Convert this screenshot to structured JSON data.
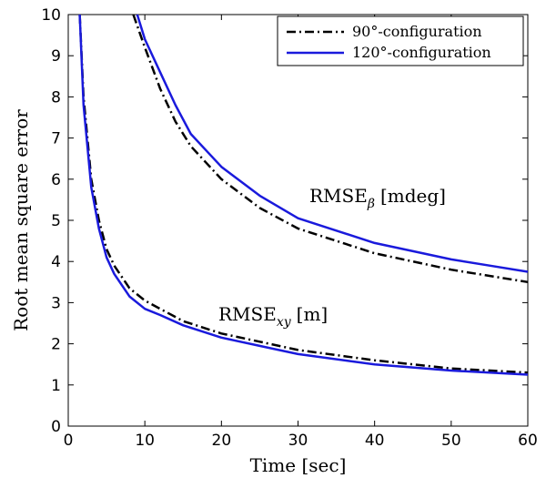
{
  "chart_data": {
    "type": "line",
    "title": "",
    "xlabel": "Time [sec]",
    "ylabel": "Root mean square error",
    "xlim": [
      0,
      60
    ],
    "ylim": [
      0,
      10
    ],
    "xticks": [
      "0",
      "10",
      "20",
      "30",
      "40",
      "50",
      "60"
    ],
    "yticks": [
      "0",
      "1",
      "2",
      "3",
      "4",
      "5",
      "6",
      "7",
      "8",
      "9",
      "10"
    ],
    "grid": false,
    "legend_position": "top-right",
    "legend": [
      "90°-configuration",
      "120°-configuration"
    ],
    "annotations": {
      "beta": {
        "base": "RMSE",
        "sub": "β",
        "unit": "[mdeg]"
      },
      "xy": {
        "base": "RMSE",
        "sub": "xy",
        "unit": "[m]"
      }
    },
    "series": [
      {
        "name": "90°-configuration",
        "group": "RMSE_beta",
        "style": "dashdot",
        "color": "#000000",
        "x": [
          8.5,
          10,
          12,
          14,
          16,
          18,
          20,
          25,
          30,
          35,
          40,
          45,
          50,
          55,
          60
        ],
        "y": [
          10.0,
          9.2,
          8.2,
          7.4,
          6.8,
          6.4,
          6.0,
          5.3,
          4.8,
          4.5,
          4.2,
          4.0,
          3.8,
          3.65,
          3.5
        ]
      },
      {
        "name": "120°-configuration",
        "group": "RMSE_beta",
        "style": "solid",
        "color": "#1a1adc",
        "x": [
          9.0,
          10,
          12,
          14,
          16,
          18,
          20,
          25,
          30,
          35,
          40,
          45,
          50,
          55,
          60
        ],
        "y": [
          10.0,
          9.4,
          8.6,
          7.8,
          7.1,
          6.7,
          6.3,
          5.6,
          5.05,
          4.75,
          4.45,
          4.25,
          4.05,
          3.9,
          3.75
        ]
      },
      {
        "name": "90°-configuration",
        "group": "RMSE_xy",
        "style": "dashdot",
        "color": "#000000",
        "x": [
          1.5,
          2,
          3,
          4,
          5,
          6,
          8,
          10,
          12,
          15,
          20,
          25,
          30,
          40,
          50,
          60
        ],
        "y": [
          10.0,
          8.0,
          6.0,
          5.0,
          4.3,
          3.9,
          3.35,
          3.05,
          2.85,
          2.55,
          2.25,
          2.05,
          1.85,
          1.6,
          1.4,
          1.3
        ]
      },
      {
        "name": "120°-configuration",
        "group": "RMSE_xy",
        "style": "solid",
        "color": "#1a1adc",
        "x": [
          1.5,
          2,
          3,
          4,
          5,
          6,
          8,
          10,
          12,
          15,
          20,
          25,
          30,
          40,
          50,
          60
        ],
        "y": [
          10.0,
          7.8,
          5.8,
          4.8,
          4.1,
          3.7,
          3.15,
          2.85,
          2.7,
          2.45,
          2.15,
          1.95,
          1.75,
          1.5,
          1.35,
          1.25
        ]
      }
    ]
  }
}
